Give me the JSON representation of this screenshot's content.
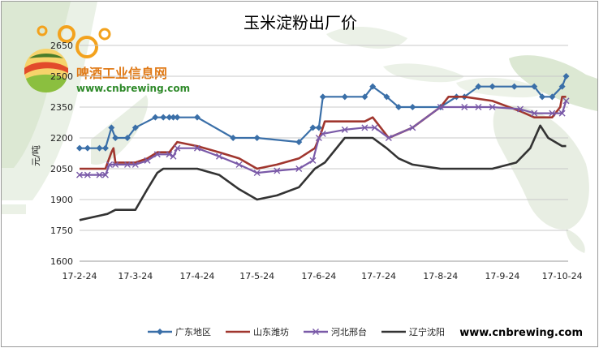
{
  "chart_data": {
    "type": "line",
    "title": "玉米淀粉出厂价",
    "ylabel": "元/吨",
    "xlabel": "",
    "ylim": [
      1600,
      2650
    ],
    "yticks": [
      1600,
      1750,
      1900,
      2050,
      2200,
      2350,
      2500,
      2650
    ],
    "xlim": [
      "2017-02-24",
      "2017-10-27"
    ],
    "xtick_labels": [
      {
        "date": "2017-02-24",
        "label": "17-2-24"
      },
      {
        "date": "2017-03-24",
        "label": "17-3-24"
      },
      {
        "date": "2017-04-24",
        "label": "17-4-24"
      },
      {
        "date": "2017-05-24",
        "label": "17-5-24"
      },
      {
        "date": "2017-06-24",
        "label": "17-6-24"
      },
      {
        "date": "2017-07-24",
        "label": "17-7-24"
      },
      {
        "date": "2017-08-24",
        "label": "17-8-24"
      },
      {
        "date": "2017-09-24",
        "label": "17-9-24"
      },
      {
        "date": "2017-10-24",
        "label": "17-10-24"
      }
    ],
    "grid": true,
    "legend_position": "bottom",
    "series": [
      {
        "name": "广东地区",
        "color": "#3a6fa8",
        "marker": "diamond",
        "points": [
          [
            "2017-02-24",
            2150
          ],
          [
            "2017-02-28",
            2150
          ],
          [
            "2017-03-06",
            2150
          ],
          [
            "2017-03-09",
            2150
          ],
          [
            "2017-03-12",
            2250
          ],
          [
            "2017-03-14",
            2200
          ],
          [
            "2017-03-20",
            2200
          ],
          [
            "2017-03-24",
            2250
          ],
          [
            "2017-04-03",
            2300
          ],
          [
            "2017-04-07",
            2300
          ],
          [
            "2017-04-10",
            2300
          ],
          [
            "2017-04-12",
            2300
          ],
          [
            "2017-04-14",
            2300
          ],
          [
            "2017-04-24",
            2300
          ],
          [
            "2017-05-12",
            2200
          ],
          [
            "2017-05-24",
            2200
          ],
          [
            "2017-06-14",
            2180
          ],
          [
            "2017-06-21",
            2250
          ],
          [
            "2017-06-24",
            2250
          ],
          [
            "2017-06-26",
            2400
          ],
          [
            "2017-07-07",
            2400
          ],
          [
            "2017-07-17",
            2400
          ],
          [
            "2017-07-21",
            2450
          ],
          [
            "2017-07-28",
            2400
          ],
          [
            "2017-08-03",
            2350
          ],
          [
            "2017-08-10",
            2350
          ],
          [
            "2017-08-24",
            2350
          ],
          [
            "2017-09-01",
            2400
          ],
          [
            "2017-09-05",
            2400
          ],
          [
            "2017-09-12",
            2450
          ],
          [
            "2017-09-19",
            2450
          ],
          [
            "2017-09-30",
            2450
          ],
          [
            "2017-10-10",
            2450
          ],
          [
            "2017-10-14",
            2400
          ],
          [
            "2017-10-19",
            2400
          ],
          [
            "2017-10-24",
            2450
          ],
          [
            "2017-10-26",
            2500
          ]
        ]
      },
      {
        "name": "山东潍坊",
        "color": "#a0362e",
        "marker": "none",
        "points": [
          [
            "2017-02-24",
            2050
          ],
          [
            "2017-03-05",
            2050
          ],
          [
            "2017-03-09",
            2050
          ],
          [
            "2017-03-12",
            2130
          ],
          [
            "2017-03-13",
            2150
          ],
          [
            "2017-03-14",
            2080
          ],
          [
            "2017-03-20",
            2080
          ],
          [
            "2017-03-24",
            2080
          ],
          [
            "2017-03-30",
            2100
          ],
          [
            "2017-04-04",
            2130
          ],
          [
            "2017-04-10",
            2130
          ],
          [
            "2017-04-14",
            2180
          ],
          [
            "2017-04-24",
            2160
          ],
          [
            "2017-05-05",
            2130
          ],
          [
            "2017-05-15",
            2100
          ],
          [
            "2017-05-24",
            2050
          ],
          [
            "2017-06-03",
            2070
          ],
          [
            "2017-06-14",
            2100
          ],
          [
            "2017-06-22",
            2150
          ],
          [
            "2017-06-25",
            2220
          ],
          [
            "2017-06-27",
            2280
          ],
          [
            "2017-07-07",
            2280
          ],
          [
            "2017-07-17",
            2280
          ],
          [
            "2017-07-21",
            2300
          ],
          [
            "2017-07-29",
            2200
          ],
          [
            "2017-08-10",
            2250
          ],
          [
            "2017-08-24",
            2350
          ],
          [
            "2017-08-28",
            2400
          ],
          [
            "2017-09-05",
            2400
          ],
          [
            "2017-09-19",
            2380
          ],
          [
            "2017-10-03",
            2330
          ],
          [
            "2017-10-10",
            2300
          ],
          [
            "2017-10-19",
            2300
          ],
          [
            "2017-10-23",
            2350
          ],
          [
            "2017-10-24",
            2400
          ],
          [
            "2017-10-26",
            2400
          ]
        ]
      },
      {
        "name": "河北邢台",
        "color": "#7a5aa8",
        "marker": "x",
        "points": [
          [
            "2017-02-24",
            2020
          ],
          [
            "2017-02-28",
            2020
          ],
          [
            "2017-03-06",
            2020
          ],
          [
            "2017-03-09",
            2020
          ],
          [
            "2017-03-11",
            2070
          ],
          [
            "2017-03-14",
            2070
          ],
          [
            "2017-03-20",
            2070
          ],
          [
            "2017-03-24",
            2070
          ],
          [
            "2017-03-30",
            2090
          ],
          [
            "2017-04-04",
            2120
          ],
          [
            "2017-04-10",
            2120
          ],
          [
            "2017-04-12",
            2110
          ],
          [
            "2017-04-14",
            2150
          ],
          [
            "2017-04-24",
            2150
          ],
          [
            "2017-05-05",
            2110
          ],
          [
            "2017-05-15",
            2070
          ],
          [
            "2017-05-24",
            2030
          ],
          [
            "2017-06-03",
            2040
          ],
          [
            "2017-06-14",
            2050
          ],
          [
            "2017-06-21",
            2090
          ],
          [
            "2017-06-24",
            2200
          ],
          [
            "2017-06-26",
            2220
          ],
          [
            "2017-07-07",
            2240
          ],
          [
            "2017-07-17",
            2250
          ],
          [
            "2017-07-22",
            2250
          ],
          [
            "2017-07-29",
            2200
          ],
          [
            "2017-08-10",
            2250
          ],
          [
            "2017-08-24",
            2350
          ],
          [
            "2017-09-05",
            2350
          ],
          [
            "2017-09-12",
            2350
          ],
          [
            "2017-09-19",
            2350
          ],
          [
            "2017-10-03",
            2340
          ],
          [
            "2017-10-10",
            2320
          ],
          [
            "2017-10-19",
            2320
          ],
          [
            "2017-10-24",
            2320
          ],
          [
            "2017-10-26",
            2380
          ]
        ]
      },
      {
        "name": "辽宁沈阳",
        "color": "#333333",
        "marker": "none",
        "points": [
          [
            "2017-02-24",
            1800
          ],
          [
            "2017-03-10",
            1830
          ],
          [
            "2017-03-14",
            1850
          ],
          [
            "2017-03-24",
            1850
          ],
          [
            "2017-03-30",
            1950
          ],
          [
            "2017-04-04",
            2030
          ],
          [
            "2017-04-07",
            2050
          ],
          [
            "2017-04-15",
            2050
          ],
          [
            "2017-04-24",
            2050
          ],
          [
            "2017-05-05",
            2020
          ],
          [
            "2017-05-15",
            1950
          ],
          [
            "2017-05-24",
            1900
          ],
          [
            "2017-06-03",
            1920
          ],
          [
            "2017-06-14",
            1960
          ],
          [
            "2017-06-22",
            2050
          ],
          [
            "2017-06-27",
            2080
          ],
          [
            "2017-07-07",
            2200
          ],
          [
            "2017-07-17",
            2200
          ],
          [
            "2017-07-21",
            2200
          ],
          [
            "2017-07-28",
            2150
          ],
          [
            "2017-08-03",
            2100
          ],
          [
            "2017-08-10",
            2070
          ],
          [
            "2017-08-24",
            2050
          ],
          [
            "2017-09-05",
            2050
          ],
          [
            "2017-09-19",
            2050
          ],
          [
            "2017-10-01",
            2080
          ],
          [
            "2017-10-08",
            2150
          ],
          [
            "2017-10-13",
            2260
          ],
          [
            "2017-10-17",
            2200
          ],
          [
            "2017-10-24",
            2160
          ],
          [
            "2017-10-26",
            2160
          ]
        ]
      }
    ]
  },
  "watermark": {
    "brand": "啤酒工业信息网",
    "url": "www.cnbrewing.com"
  },
  "footer": {
    "url": "www.cnbrewing.com"
  }
}
